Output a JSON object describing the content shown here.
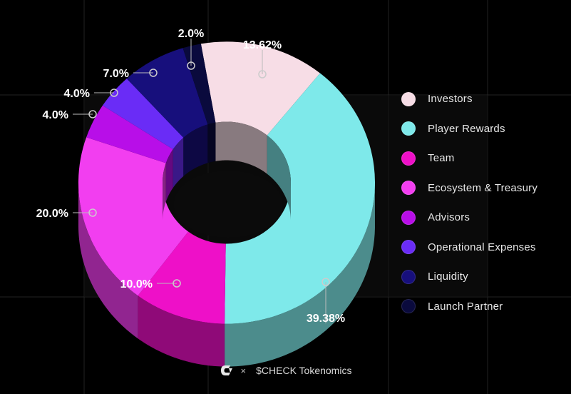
{
  "chart_data": {
    "type": "pie",
    "donut": true,
    "three_d": true,
    "slices": [
      {
        "label": "Investors",
        "value": 13.62,
        "value_label": "13.62%",
        "color": "#f7dde6"
      },
      {
        "label": "Player Rewards",
        "value": 39.38,
        "value_label": "39.38%",
        "color": "#7ee9ea"
      },
      {
        "label": "Team",
        "value": 10.0,
        "value_label": "10.0%",
        "color": "#ee10c8"
      },
      {
        "label": "Ecosystem & Treasury",
        "value": 20.0,
        "value_label": "20.0%",
        "color": "#f23ef0"
      },
      {
        "label": "Advisors",
        "value": 4.0,
        "value_label": "4.0%",
        "color": "#b80ee8"
      },
      {
        "label": "Operational Expenses",
        "value": 4.0,
        "value_label": "4.0%",
        "color": "#6a2cf6"
      },
      {
        "label": "Liquidity",
        "value": 7.0,
        "value_label": "7.0%",
        "color": "#170f7c"
      },
      {
        "label": "Launch Partner",
        "value": 2.0,
        "value_label": "2.0%",
        "color": "#0a0a3d"
      }
    ],
    "legend_position": "right",
    "grid": true
  },
  "footer": {
    "logo_icon": "check-logo-icon",
    "separator": "×",
    "title": "$CHECK Tokenomics"
  }
}
